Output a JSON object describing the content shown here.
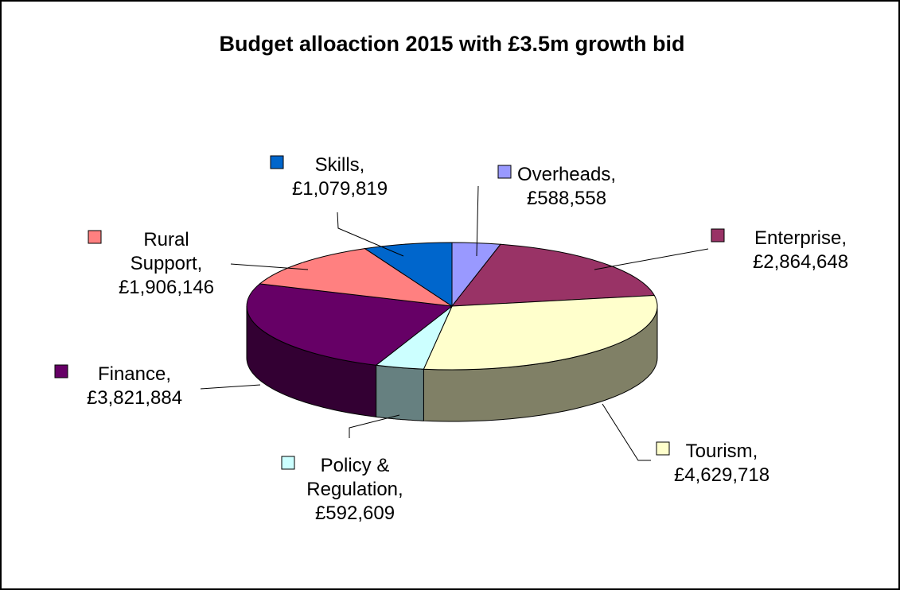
{
  "chart_data": {
    "type": "pie",
    "three_d": true,
    "title": "Budget alloaction 2015 with £3.5m growth bid",
    "slices": [
      {
        "name": "Overheads",
        "value": 588558,
        "label": "£588,558",
        "color": "#9999ff"
      },
      {
        "name": "Enterprise",
        "value": 2864648,
        "label": "£2,864,648",
        "color": "#993366"
      },
      {
        "name": "Tourism",
        "value": 4629718,
        "label": "£4,629,718",
        "color": "#ffffcc"
      },
      {
        "name": "Policy & Regulation",
        "value": 592609,
        "label": "£592,609",
        "color": "#ccffff"
      },
      {
        "name": "Finance",
        "value": 3821884,
        "label": "£3,821,884",
        "color": "#660066"
      },
      {
        "name": "Rural Support",
        "value": 1906146,
        "label": "£1,906,146",
        "color": "#ff8080"
      },
      {
        "name": "Skills",
        "value": 1079819,
        "label": "£1,079,819",
        "color": "#0066cc"
      }
    ]
  }
}
